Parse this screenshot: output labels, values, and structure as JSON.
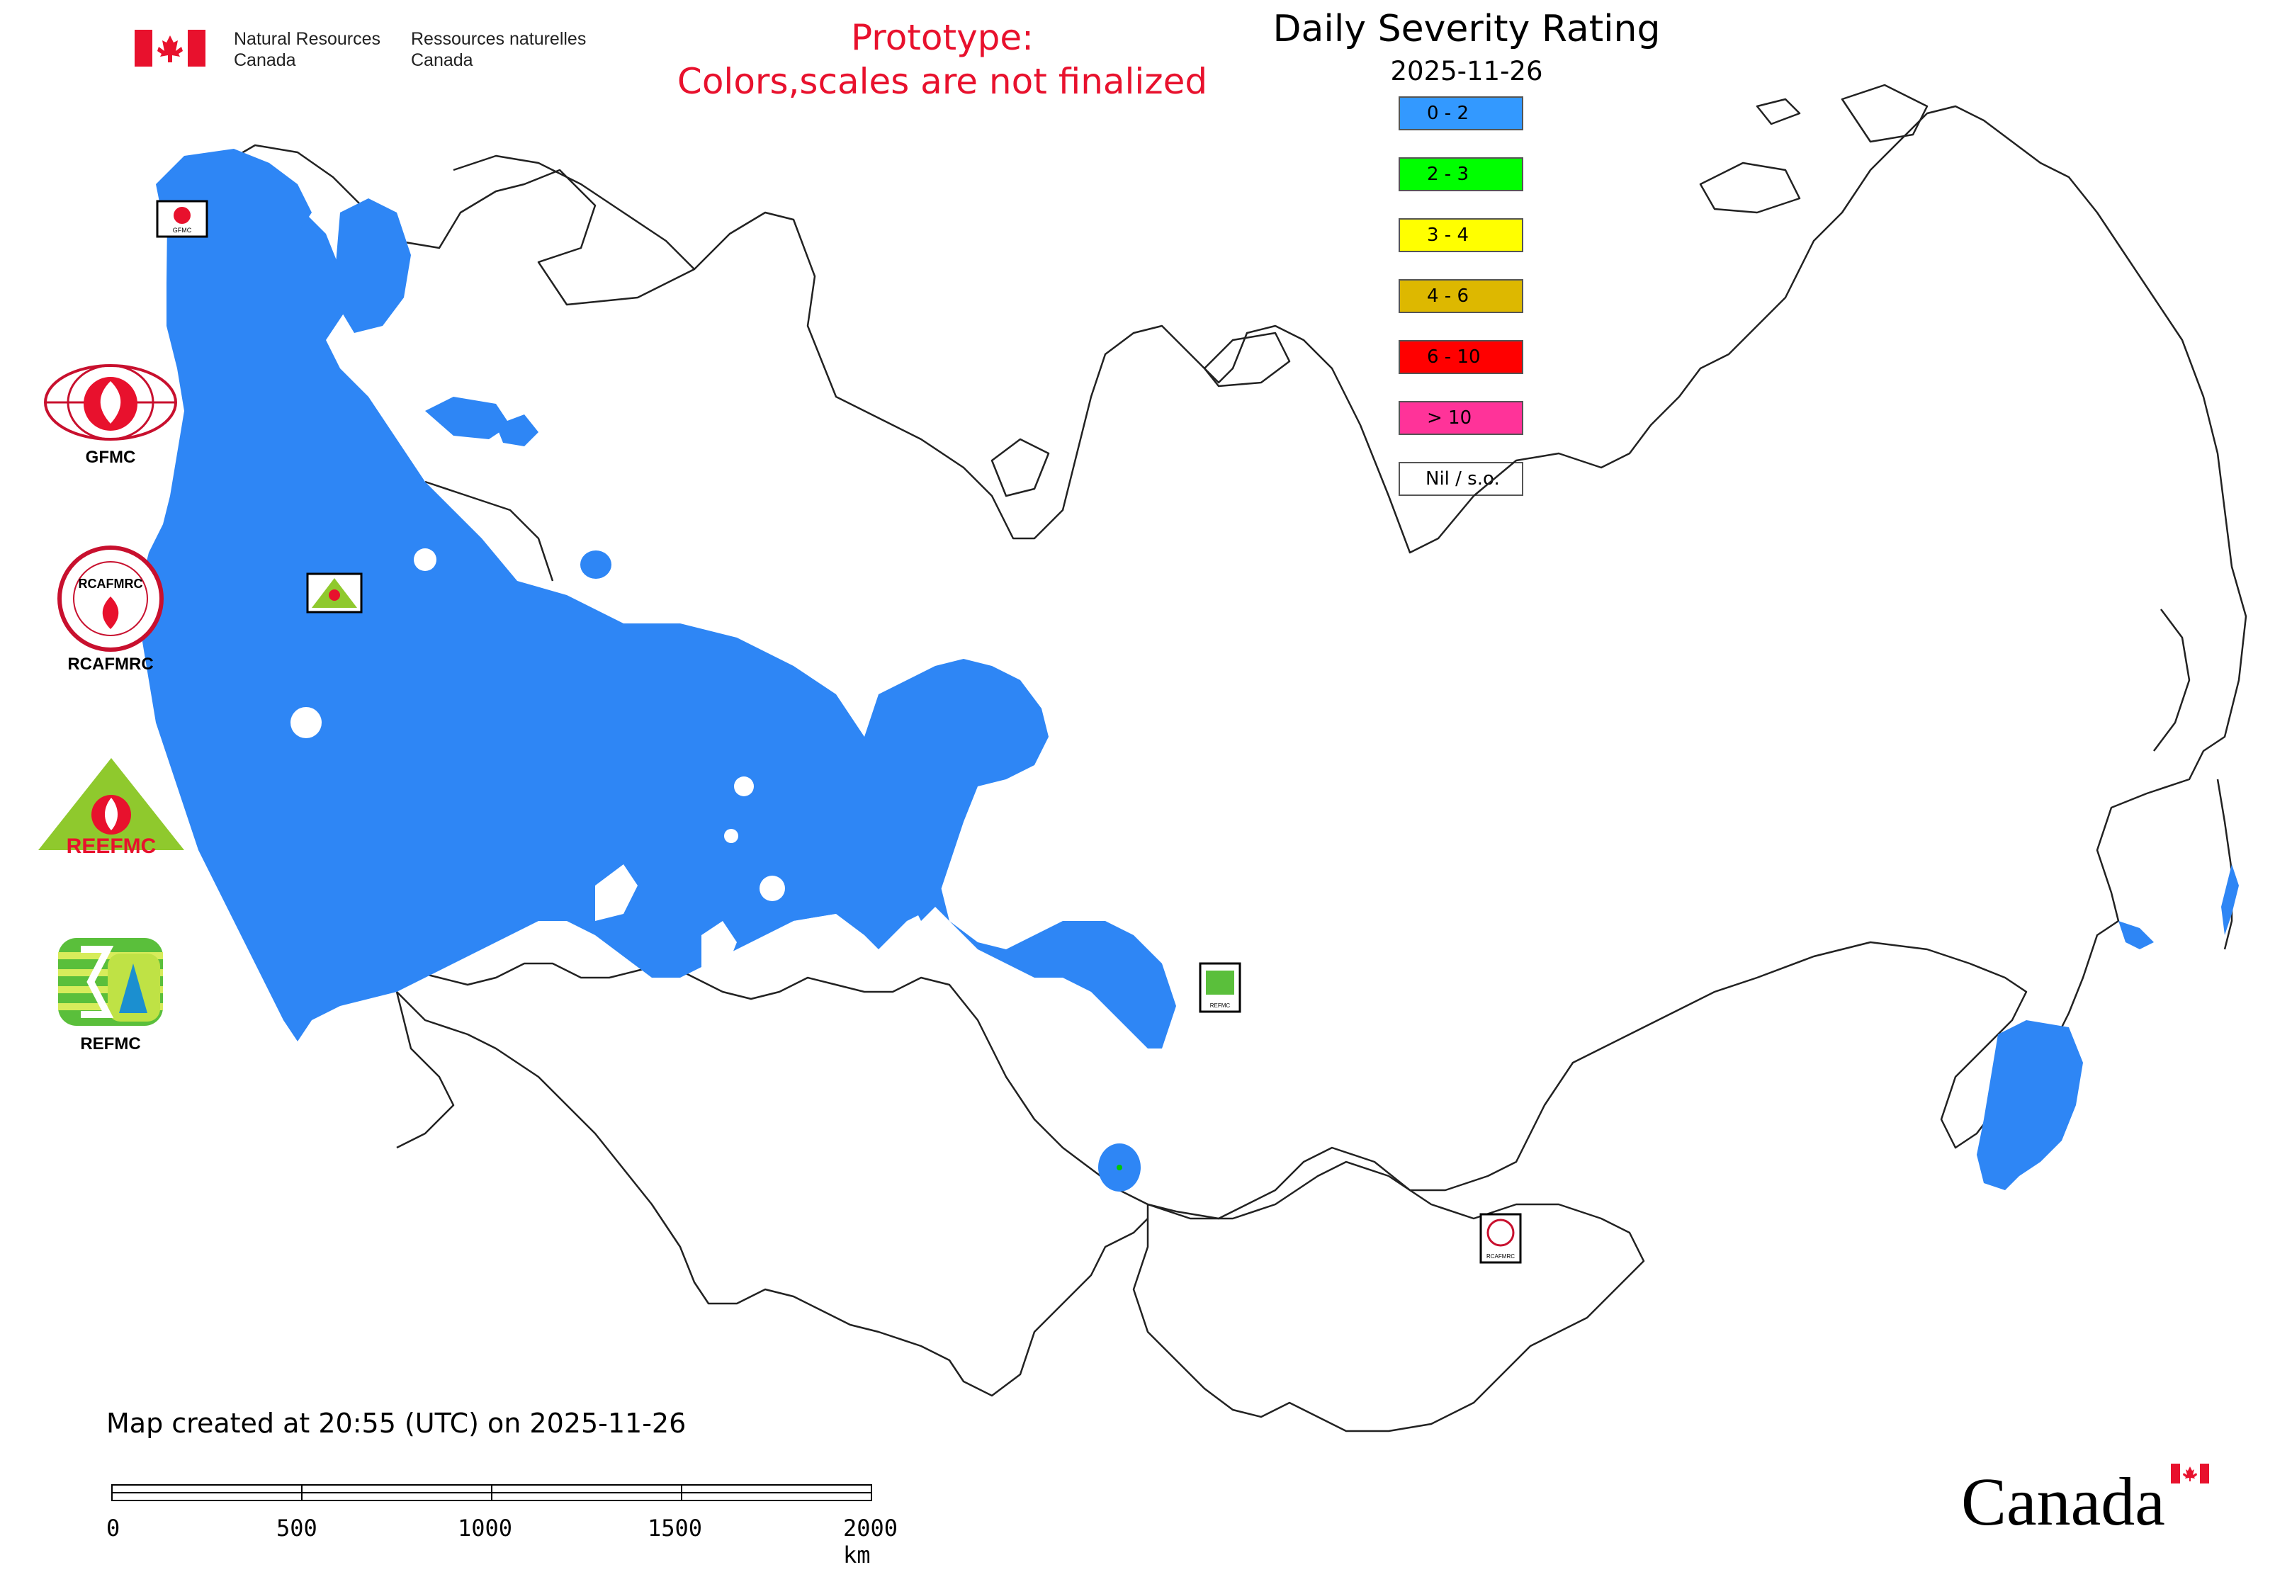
{
  "header": {
    "org_en_line1": "Natural Resources",
    "org_en_line2": "Canada",
    "org_fr_line1": "Ressources naturelles",
    "org_fr_line2": "Canada",
    "prototype_line1": "Prototype:",
    "prototype_line2": "Colors,scales are not finalized",
    "title": "Daily Severity Rating",
    "date": "2025-11-26"
  },
  "legend": {
    "items": [
      {
        "label": "0 - 2",
        "color": "#3399ff"
      },
      {
        "label": "2 - 3",
        "color": "#00ff00"
      },
      {
        "label": "3 - 4",
        "color": "#ffff00"
      },
      {
        "label": "4 - 6",
        "color": "#ddb800"
      },
      {
        "label": "6 - 10",
        "color": "#ff0000"
      },
      {
        "label": "> 10",
        "color": "#ff3399"
      },
      {
        "label": "Nil / s.o.",
        "color": "#ffffff"
      }
    ]
  },
  "organizations": {
    "gfmc": "GFMC",
    "rcafmrc": "RCAFMRC",
    "reefmc": "REEFMC",
    "refmc": "REFMC"
  },
  "footer": {
    "created": "Map created at 20:55 (UTC) on 2025-11-26",
    "scale_labels": [
      "0",
      "500",
      "1000",
      "1500",
      "2000 km"
    ],
    "wordmark": "Canada"
  },
  "colors": {
    "severity_fill": "#2e86f5",
    "prototype_red": "#e8112d",
    "flag_red": "#e8112d"
  }
}
